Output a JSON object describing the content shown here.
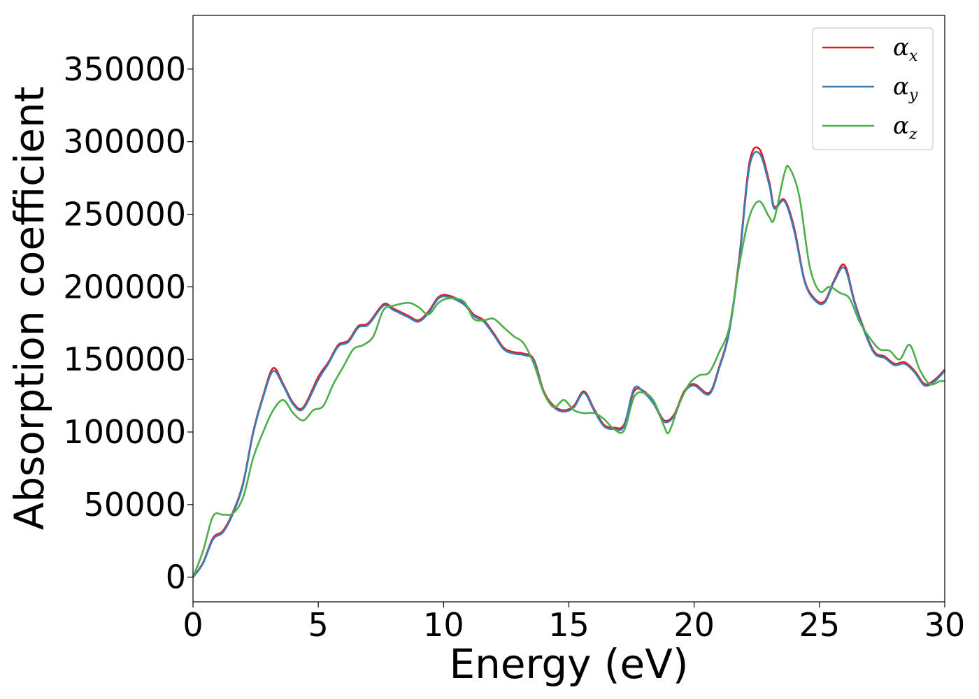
{
  "chart_data": {
    "type": "line",
    "xlabel": "Energy (eV)",
    "ylabel": "Absorption coefficient",
    "xlim": [
      0,
      30
    ],
    "ylim": [
      -17000,
      387000
    ],
    "xticks": [
      0,
      5,
      10,
      15,
      20,
      25,
      30
    ],
    "yticks": [
      0,
      50000,
      100000,
      150000,
      200000,
      250000,
      300000,
      350000
    ],
    "grid": false,
    "legend_position": "top-right",
    "series": [
      {
        "name": "α",
        "subscript": "x",
        "color": "#e41a1c",
        "points": [
          [
            0,
            0
          ],
          [
            0.4,
            10000
          ],
          [
            0.8,
            27000
          ],
          [
            1.2,
            32000
          ],
          [
            1.6,
            45000
          ],
          [
            2.0,
            65000
          ],
          [
            2.4,
            100000
          ],
          [
            2.8,
            125000
          ],
          [
            3.2,
            144000
          ],
          [
            3.6,
            133000
          ],
          [
            4.0,
            120000
          ],
          [
            4.4,
            117000
          ],
          [
            5.0,
            138000
          ],
          [
            5.4,
            148000
          ],
          [
            5.8,
            160000
          ],
          [
            6.2,
            163000
          ],
          [
            6.6,
            173000
          ],
          [
            7.0,
            175000
          ],
          [
            7.6,
            188000
          ],
          [
            8.0,
            185000
          ],
          [
            8.6,
            180000
          ],
          [
            9.0,
            177000
          ],
          [
            9.4,
            183000
          ],
          [
            9.8,
            193000
          ],
          [
            10.2,
            194000
          ],
          [
            10.8,
            189000
          ],
          [
            11.2,
            181000
          ],
          [
            11.6,
            177000
          ],
          [
            12.0,
            168000
          ],
          [
            12.4,
            158000
          ],
          [
            12.8,
            155000
          ],
          [
            13.2,
            154000
          ],
          [
            13.6,
            150000
          ],
          [
            14.0,
            128000
          ],
          [
            14.4,
            118000
          ],
          [
            14.8,
            115000
          ],
          [
            15.2,
            118000
          ],
          [
            15.6,
            128000
          ],
          [
            16.0,
            116000
          ],
          [
            16.4,
            105000
          ],
          [
            16.8,
            103000
          ],
          [
            17.2,
            105000
          ],
          [
            17.6,
            128000
          ],
          [
            18.0,
            128000
          ],
          [
            18.4,
            120000
          ],
          [
            18.8,
            108000
          ],
          [
            19.2,
            112000
          ],
          [
            19.6,
            128000
          ],
          [
            20.0,
            133000
          ],
          [
            20.6,
            127000
          ],
          [
            21.0,
            145000
          ],
          [
            21.4,
            170000
          ],
          [
            21.8,
            220000
          ],
          [
            22.2,
            285000
          ],
          [
            22.6,
            295000
          ],
          [
            23.0,
            272000
          ],
          [
            23.2,
            255000
          ],
          [
            23.6,
            260000
          ],
          [
            24.0,
            240000
          ],
          [
            24.4,
            205000
          ],
          [
            24.8,
            192000
          ],
          [
            25.2,
            190000
          ],
          [
            25.6,
            205000
          ],
          [
            26.0,
            215000
          ],
          [
            26.4,
            190000
          ],
          [
            26.8,
            170000
          ],
          [
            27.2,
            155000
          ],
          [
            27.6,
            152000
          ],
          [
            28.0,
            147000
          ],
          [
            28.4,
            148000
          ],
          [
            28.8,
            142000
          ],
          [
            29.2,
            133000
          ],
          [
            29.6,
            136000
          ],
          [
            30.0,
            143000
          ]
        ]
      },
      {
        "name": "α",
        "subscript": "y",
        "color": "#377eb8",
        "points": [
          [
            0,
            0
          ],
          [
            0.4,
            9500
          ],
          [
            0.8,
            26000
          ],
          [
            1.2,
            31000
          ],
          [
            1.6,
            44000
          ],
          [
            2.0,
            64000
          ],
          [
            2.4,
            99000
          ],
          [
            2.8,
            124000
          ],
          [
            3.2,
            142000
          ],
          [
            3.6,
            132000
          ],
          [
            4.0,
            119000
          ],
          [
            4.4,
            116000
          ],
          [
            5.0,
            136000
          ],
          [
            5.4,
            147000
          ],
          [
            5.8,
            159000
          ],
          [
            6.2,
            162000
          ],
          [
            6.6,
            172000
          ],
          [
            7.0,
            174000
          ],
          [
            7.6,
            187000
          ],
          [
            8.0,
            184000
          ],
          [
            8.6,
            179000
          ],
          [
            9.0,
            176000
          ],
          [
            9.4,
            182000
          ],
          [
            9.8,
            192000
          ],
          [
            10.2,
            193000
          ],
          [
            10.8,
            188000
          ],
          [
            11.2,
            180000
          ],
          [
            11.6,
            176000
          ],
          [
            12.0,
            167000
          ],
          [
            12.4,
            157000
          ],
          [
            12.8,
            154000
          ],
          [
            13.2,
            153000
          ],
          [
            13.6,
            149000
          ],
          [
            14.0,
            127000
          ],
          [
            14.4,
            117000
          ],
          [
            14.8,
            114000
          ],
          [
            15.2,
            117000
          ],
          [
            15.6,
            127000
          ],
          [
            16.0,
            115000
          ],
          [
            16.4,
            104000
          ],
          [
            16.8,
            102000
          ],
          [
            17.2,
            104000
          ],
          [
            17.6,
            130000
          ],
          [
            18.0,
            127000
          ],
          [
            18.4,
            119000
          ],
          [
            18.8,
            107000
          ],
          [
            19.2,
            111000
          ],
          [
            19.6,
            127000
          ],
          [
            20.0,
            132000
          ],
          [
            20.6,
            126000
          ],
          [
            21.0,
            144000
          ],
          [
            21.4,
            169000
          ],
          [
            21.8,
            218000
          ],
          [
            22.2,
            282000
          ],
          [
            22.6,
            292000
          ],
          [
            23.0,
            270000
          ],
          [
            23.2,
            254000
          ],
          [
            23.6,
            259000
          ],
          [
            24.0,
            238000
          ],
          [
            24.4,
            204000
          ],
          [
            24.8,
            191000
          ],
          [
            25.2,
            189000
          ],
          [
            25.6,
            204000
          ],
          [
            26.0,
            213000
          ],
          [
            26.4,
            189000
          ],
          [
            26.8,
            169000
          ],
          [
            27.2,
            154000
          ],
          [
            27.6,
            151000
          ],
          [
            28.0,
            146000
          ],
          [
            28.4,
            147000
          ],
          [
            28.8,
            141000
          ],
          [
            29.2,
            132000
          ],
          [
            29.6,
            135000
          ],
          [
            30.0,
            142000
          ]
        ]
      },
      {
        "name": "α",
        "subscript": "z",
        "color": "#4daf4a",
        "points": [
          [
            0,
            0
          ],
          [
            0.4,
            18000
          ],
          [
            0.8,
            42000
          ],
          [
            1.2,
            43000
          ],
          [
            1.6,
            44000
          ],
          [
            2.0,
            55000
          ],
          [
            2.4,
            82000
          ],
          [
            2.8,
            100000
          ],
          [
            3.2,
            115000
          ],
          [
            3.6,
            122000
          ],
          [
            4.0,
            113000
          ],
          [
            4.4,
            108000
          ],
          [
            4.8,
            115000
          ],
          [
            5.2,
            118000
          ],
          [
            5.6,
            133000
          ],
          [
            6.0,
            145000
          ],
          [
            6.4,
            157000
          ],
          [
            6.8,
            160000
          ],
          [
            7.2,
            166000
          ],
          [
            7.6,
            184000
          ],
          [
            8.0,
            187000
          ],
          [
            8.6,
            189000
          ],
          [
            9.0,
            186000
          ],
          [
            9.4,
            181000
          ],
          [
            9.8,
            189000
          ],
          [
            10.2,
            192000
          ],
          [
            10.8,
            190000
          ],
          [
            11.2,
            178000
          ],
          [
            11.6,
            177000
          ],
          [
            12.0,
            178000
          ],
          [
            12.4,
            172000
          ],
          [
            12.8,
            166000
          ],
          [
            13.2,
            161000
          ],
          [
            13.6,
            147000
          ],
          [
            14.0,
            127000
          ],
          [
            14.4,
            117000
          ],
          [
            14.8,
            122000
          ],
          [
            15.2,
            115000
          ],
          [
            15.6,
            113000
          ],
          [
            16.0,
            113000
          ],
          [
            16.4,
            109000
          ],
          [
            16.8,
            102000
          ],
          [
            17.2,
            101000
          ],
          [
            17.6,
            124000
          ],
          [
            18.0,
            127000
          ],
          [
            18.4,
            121000
          ],
          [
            18.8,
            104000
          ],
          [
            19.0,
            100000
          ],
          [
            19.4,
            119000
          ],
          [
            19.8,
            133000
          ],
          [
            20.2,
            139000
          ],
          [
            20.6,
            141000
          ],
          [
            21.0,
            155000
          ],
          [
            21.4,
            172000
          ],
          [
            21.8,
            215000
          ],
          [
            22.2,
            248000
          ],
          [
            22.6,
            259000
          ],
          [
            23.0,
            248000
          ],
          [
            23.2,
            247000
          ],
          [
            23.6,
            278000
          ],
          [
            23.8,
            282000
          ],
          [
            24.2,
            262000
          ],
          [
            24.6,
            215000
          ],
          [
            25.0,
            197000
          ],
          [
            25.4,
            200000
          ],
          [
            25.8,
            196000
          ],
          [
            26.2,
            192000
          ],
          [
            26.6,
            176000
          ],
          [
            27.0,
            165000
          ],
          [
            27.4,
            157000
          ],
          [
            27.8,
            156000
          ],
          [
            28.2,
            150000
          ],
          [
            28.6,
            160000
          ],
          [
            29.0,
            143000
          ],
          [
            29.4,
            133000
          ],
          [
            29.8,
            135000
          ],
          [
            30.0,
            135000
          ]
        ]
      }
    ]
  }
}
